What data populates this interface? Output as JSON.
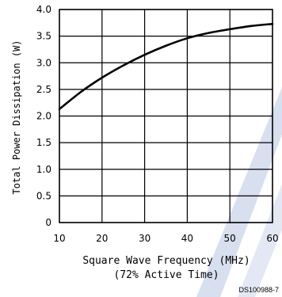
{
  "chart_data": {
    "type": "line",
    "xlabel": "Square Wave Frequency (MHz)",
    "xlabel_note": "(72% Active Time)",
    "ylabel": "Total Power Dissipation (W)",
    "xlim": [
      10,
      60
    ],
    "ylim": [
      0,
      4.0
    ],
    "x_ticks": [
      10,
      20,
      30,
      40,
      50,
      60
    ],
    "y_ticks": [
      0,
      0.5,
      1.0,
      1.5,
      2.0,
      2.5,
      3.0,
      3.5,
      4.0
    ],
    "y_tick_labels": [
      "0",
      "0.5",
      "1.0",
      "1.5",
      "2.0",
      "2.5",
      "3.0",
      "3.5",
      "4.0"
    ],
    "grid": true,
    "series": [
      {
        "x": [
          10,
          15,
          20,
          25,
          30,
          35,
          40,
          45,
          50,
          55,
          60
        ],
        "y": [
          2.13,
          2.45,
          2.72,
          2.95,
          3.15,
          3.32,
          3.46,
          3.56,
          3.63,
          3.69,
          3.73
        ]
      }
    ]
  },
  "figure_id": "DS100988-7",
  "colors": {
    "line": "#000000",
    "grid": "#000000",
    "text": "#000000",
    "watermark": "#b9c6e3"
  }
}
